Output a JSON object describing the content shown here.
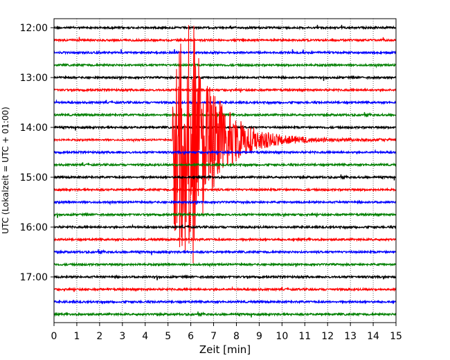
{
  "chart_data": {
    "type": "line",
    "xlabel": "Zeit  [min]",
    "ylabel": "UTC (Lokalzeit = UTC + 01:00)",
    "xlim": [
      0,
      15
    ],
    "xticks": [
      0,
      1,
      2,
      3,
      4,
      5,
      6,
      7,
      8,
      9,
      10,
      11,
      12,
      13,
      14,
      15
    ],
    "ytick_labels": [
      "12:00",
      "13:00",
      "14:00",
      "15:00",
      "16:00",
      "17:00"
    ],
    "grid": "x-dotted",
    "trace_interval_min": 15,
    "trace_colors": [
      "#000000",
      "#ff0000",
      "#0000ff",
      "#008000"
    ],
    "traces": [
      {
        "utc": "12:00",
        "color": "#000000"
      },
      {
        "utc": "12:15",
        "color": "#ff0000"
      },
      {
        "utc": "12:30",
        "color": "#0000ff"
      },
      {
        "utc": "12:45",
        "color": "#008000"
      },
      {
        "utc": "13:00",
        "color": "#000000"
      },
      {
        "utc": "13:15",
        "color": "#ff0000"
      },
      {
        "utc": "13:30",
        "color": "#0000ff"
      },
      {
        "utc": "13:45",
        "color": "#008000"
      },
      {
        "utc": "14:00",
        "color": "#000000"
      },
      {
        "utc": "14:15",
        "color": "#ff0000",
        "event": true,
        "event_onset_min": 5.2
      },
      {
        "utc": "14:30",
        "color": "#0000ff"
      },
      {
        "utc": "14:45",
        "color": "#008000"
      },
      {
        "utc": "15:00",
        "color": "#000000"
      },
      {
        "utc": "15:15",
        "color": "#ff0000"
      },
      {
        "utc": "15:30",
        "color": "#0000ff"
      },
      {
        "utc": "15:45",
        "color": "#008000"
      },
      {
        "utc": "16:00",
        "color": "#000000"
      },
      {
        "utc": "16:15",
        "color": "#ff0000"
      },
      {
        "utc": "16:30",
        "color": "#0000ff"
      },
      {
        "utc": "16:45",
        "color": "#008000"
      },
      {
        "utc": "17:00",
        "color": "#000000"
      },
      {
        "utc": "17:15",
        "color": "#ff0000"
      },
      {
        "utc": "17:30",
        "color": "#0000ff"
      },
      {
        "utc": "17:45",
        "color": "#008000"
      }
    ]
  }
}
